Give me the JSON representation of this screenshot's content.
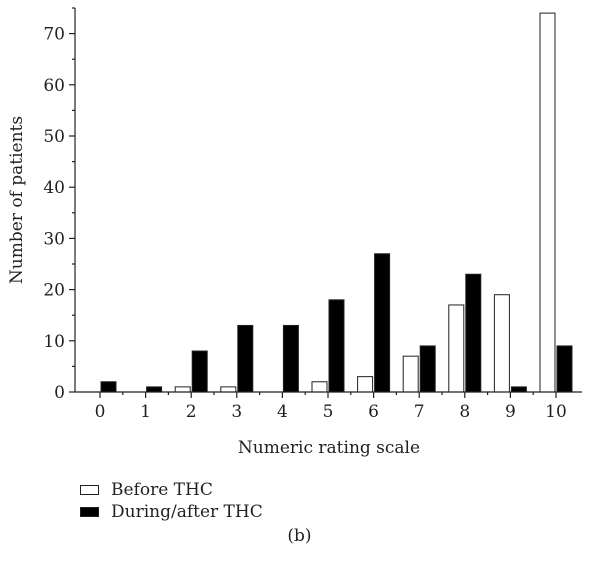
{
  "chart_data": {
    "type": "bar",
    "title": "",
    "xlabel": "Numeric rating scale",
    "ylabel": "Number of patients",
    "categories": [
      "0",
      "1",
      "2",
      "3",
      "4",
      "5",
      "6",
      "7",
      "8",
      "9",
      "10"
    ],
    "ylim": [
      0,
      75
    ],
    "yticks": [
      0,
      10,
      20,
      30,
      40,
      50,
      60,
      70
    ],
    "series": [
      {
        "name": "Before THC",
        "fill": "#ffffff",
        "values": [
          0,
          0,
          1,
          1,
          0,
          2,
          3,
          7,
          17,
          19,
          74
        ]
      },
      {
        "name": "During/after THC",
        "fill": "#000000",
        "values": [
          2,
          1,
          8,
          13,
          13,
          18,
          27,
          9,
          23,
          1,
          9
        ]
      }
    ],
    "grid": false,
    "legend_position": "below"
  },
  "panel_label": "(b)",
  "colors": {
    "axis": "#231f20",
    "before_fill": "#ffffff",
    "after_fill": "#000000"
  }
}
